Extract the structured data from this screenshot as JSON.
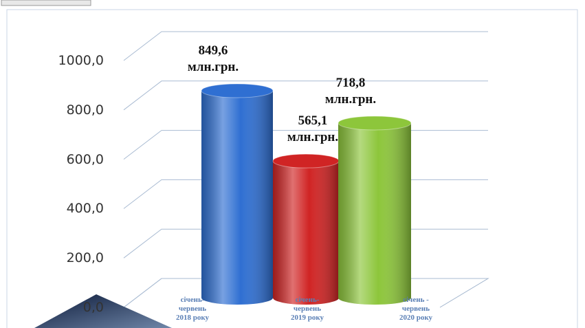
{
  "chart_data": {
    "type": "bar",
    "categories": [
      "січень-\nчервень\n2018 року",
      "січень-\nчервень\n2019 року",
      "січень -\nчервень\n2020 року"
    ],
    "values": [
      849.6,
      565.1,
      718.8
    ],
    "value_labels": [
      "849,6\nмлн.грн.",
      "565,1\nмлн.грн.",
      "718,8\nмлн.грн."
    ],
    "colors": [
      "#2f6fd2",
      "#d02424",
      "#8dc63b"
    ],
    "ylim": [
      0,
      1000
    ],
    "yticks": [
      {
        "value": 0,
        "label": "0,0"
      },
      {
        "value": 200,
        "label": "200,0"
      },
      {
        "value": 400,
        "label": "400,0"
      },
      {
        "value": 600,
        "label": "600,0"
      },
      {
        "value": 800,
        "label": "800,0"
      },
      {
        "value": 1000,
        "label": "1000,0"
      }
    ],
    "grid": true
  }
}
